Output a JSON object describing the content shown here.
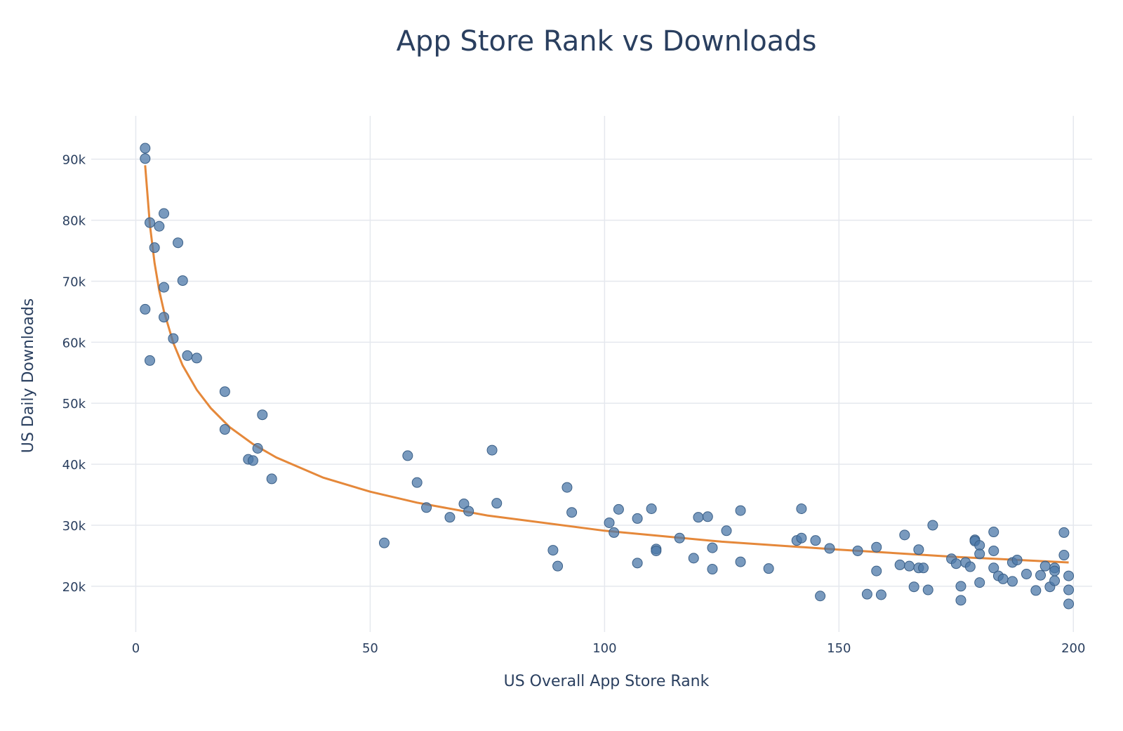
{
  "chart_data": {
    "type": "scatter",
    "title": "App Store Rank vs Downloads",
    "xlabel": "US Overall App Store Rank",
    "ylabel": "US Daily Downloads",
    "xlim": [
      -9.5,
      204
    ],
    "ylim": [
      12.5,
      97.1
    ],
    "x_ticks": [
      0,
      50,
      100,
      150,
      200
    ],
    "x_tick_labels": [
      "0",
      "50",
      "100",
      "150",
      "200"
    ],
    "y_ticks": [
      20,
      30,
      40,
      50,
      60,
      70,
      80,
      90
    ],
    "y_tick_labels": [
      "20k",
      "30k",
      "40k",
      "50k",
      "60k",
      "70k",
      "80k",
      "90k"
    ],
    "y_units": "thousands",
    "grid": true,
    "legend": "none",
    "colors": {
      "points": "#4c78a8",
      "point_outline": "#3a5f87",
      "trendline": "#e5883a"
    },
    "points": {
      "x": [
        2,
        2,
        3,
        5,
        6,
        4,
        9,
        6,
        10,
        2,
        6,
        8,
        3,
        11,
        13,
        19,
        19,
        27,
        26,
        24,
        25,
        29,
        53,
        58,
        60,
        62,
        67,
        70,
        71,
        76,
        77,
        89,
        90,
        92,
        93,
        101,
        102,
        103,
        107,
        107,
        110,
        111,
        111,
        116,
        119,
        120,
        122,
        123,
        123,
        126,
        129,
        129,
        135,
        141,
        142,
        142,
        145,
        146,
        148,
        154,
        156,
        158,
        158,
        159,
        163,
        164,
        165,
        166,
        167,
        167,
        168,
        169,
        170,
        174,
        175,
        176,
        176,
        177,
        178,
        179,
        179,
        180,
        180,
        180,
        183,
        183,
        183,
        184,
        185,
        187,
        187,
        188,
        190,
        192,
        193,
        194,
        195,
        196,
        196,
        196,
        198,
        198,
        199,
        199,
        199
      ],
      "y": [
        91.8,
        90.1,
        79.6,
        79.0,
        81.1,
        75.5,
        76.3,
        69.0,
        70.1,
        65.4,
        64.1,
        60.6,
        57.0,
        57.8,
        57.4,
        51.9,
        45.7,
        48.1,
        42.6,
        40.8,
        40.6,
        37.6,
        27.1,
        41.4,
        37.0,
        32.9,
        31.3,
        33.5,
        32.3,
        42.3,
        33.6,
        25.9,
        23.3,
        36.2,
        32.1,
        30.4,
        28.8,
        32.6,
        31.1,
        23.8,
        32.7,
        26.1,
        25.8,
        27.9,
        24.6,
        31.3,
        31.4,
        26.3,
        22.8,
        29.1,
        32.4,
        24.0,
        22.9,
        27.5,
        27.9,
        32.7,
        27.5,
        18.4,
        26.2,
        25.8,
        18.7,
        26.4,
        22.5,
        18.6,
        23.5,
        28.4,
        23.3,
        19.9,
        26.0,
        23.0,
        23.0,
        19.4,
        30.0,
        24.5,
        23.7,
        20.0,
        17.7,
        23.9,
        23.2,
        27.6,
        27.4,
        26.7,
        25.3,
        20.6,
        28.9,
        25.8,
        23.0,
        21.7,
        21.2,
        23.9,
        20.8,
        24.3,
        22.0,
        19.3,
        21.8,
        23.3,
        19.9,
        23.0,
        22.5,
        20.9,
        28.8,
        25.1,
        21.7,
        19.4,
        17.1
      ]
    },
    "trendline": {
      "x": [
        2,
        3,
        4,
        5,
        6,
        8,
        10,
        13,
        16,
        20,
        25,
        30,
        40,
        50,
        60,
        75,
        100,
        125,
        150,
        175,
        199
      ],
      "y": [
        89.0,
        79.3,
        73.0,
        68.5,
        65.1,
        59.9,
        56.2,
        52.2,
        49.2,
        46.1,
        43.3,
        41.1,
        37.8,
        35.5,
        33.7,
        31.6,
        29.1,
        27.3,
        26.0,
        24.8,
        23.9
      ]
    }
  }
}
